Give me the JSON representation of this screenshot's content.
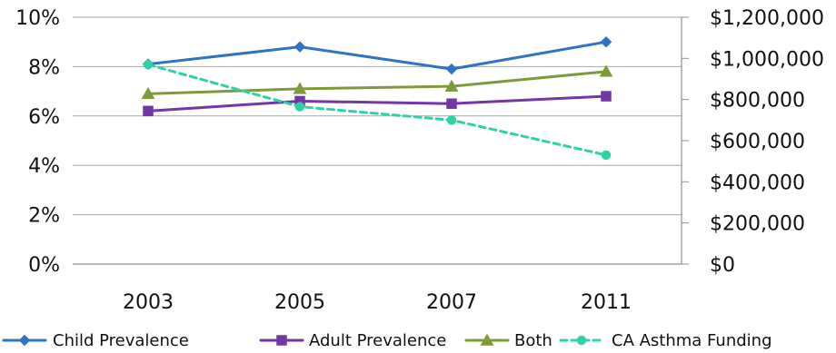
{
  "chart_data": {
    "type": "line",
    "title": "",
    "xlabel": "",
    "ylabel": "",
    "y2label": "",
    "categories": [
      "2003",
      "2005",
      "2007",
      "2011"
    ],
    "ylim": [
      0,
      10
    ],
    "y2lim": [
      0,
      1200000
    ],
    "y_ticks": [
      0,
      2,
      4,
      6,
      8,
      10
    ],
    "y_tick_labels": [
      "0%",
      "2%",
      "4%",
      "6%",
      "8%",
      "10%"
    ],
    "y2_ticks": [
      0,
      200000,
      400000,
      600000,
      800000,
      1000000,
      1200000
    ],
    "y2_tick_labels": [
      "$0",
      "$200,000",
      "$400,000",
      "$600,000",
      "$800,000",
      "$1,000,000",
      "$1,200,000"
    ],
    "grid": true,
    "legend_position": "bottom",
    "series": [
      {
        "name": "Child Prevalence",
        "axis": "left",
        "values": [
          8.1,
          8.8,
          7.9,
          9.0
        ],
        "color": "#2e73c4",
        "marker": "diamond",
        "dash": "solid"
      },
      {
        "name": "Adult Prevalence",
        "axis": "left",
        "values": [
          6.2,
          6.6,
          6.5,
          6.8
        ],
        "color": "#7236a6",
        "marker": "square",
        "dash": "solid"
      },
      {
        "name": "Both",
        "axis": "left",
        "values": [
          6.9,
          7.1,
          7.2,
          7.8
        ],
        "color": "#7f9a3a",
        "marker": "triangle",
        "dash": "solid"
      },
      {
        "name": "CA Asthma Funding",
        "axis": "right",
        "values": [
          970000,
          765000,
          700000,
          530000
        ],
        "color": "#2fd2a6",
        "marker": "circle",
        "dash": "dashed"
      }
    ]
  }
}
